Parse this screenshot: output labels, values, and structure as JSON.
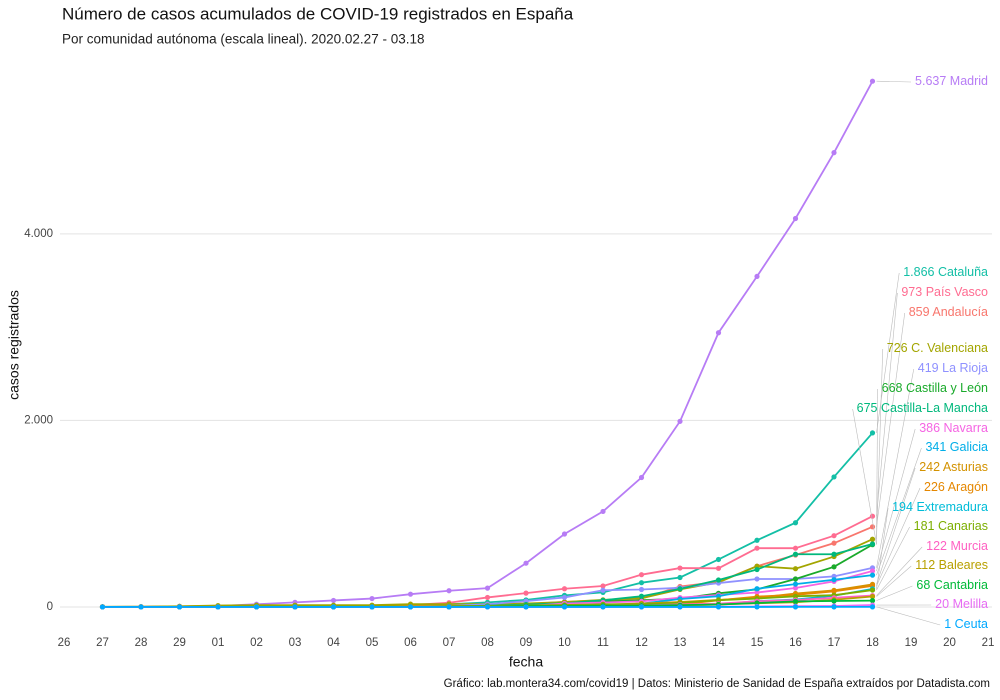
{
  "chart_data": {
    "type": "line",
    "title": "Número de casos acumulados de COVID-19 registrados en España",
    "subtitle": "Por comunidad autónoma (escala lineal). 2020.02.27 - 03.18",
    "x_label": "fecha",
    "y_label": "casos registrados",
    "caption": "Gráfico: lab.montera34.com/covid19 | Datos: Ministerio de Sanidad de España extraídos por Datadista.com",
    "categories": [
      "26",
      "27",
      "28",
      "29",
      "01",
      "02",
      "03",
      "04",
      "05",
      "06",
      "07",
      "08",
      "09",
      "10",
      "11",
      "12",
      "13",
      "14",
      "15",
      "16",
      "17",
      "18",
      "19",
      "20",
      "21"
    ],
    "ylim": [
      -200,
      5800
    ],
    "yticks": [
      0,
      {
        "value": 2000,
        "label": "2.000"
      },
      {
        "value": 4000,
        "label": "4.000"
      }
    ],
    "grid": true,
    "series": [
      {
        "name": "Madrid",
        "color": "#b77cf5",
        "values": [
          null,
          1,
          2,
          6,
          10,
          29,
          49,
          70,
          90,
          137,
          174,
          202,
          469,
          782,
          1024,
          1388,
          1990,
          2940,
          3544,
          4165,
          4871,
          5637,
          null,
          null,
          null
        ],
        "value_labels": [
          null,
          null,
          null,
          null,
          null,
          null,
          null,
          null,
          null,
          null,
          null,
          null,
          null,
          null,
          null,
          null,
          null,
          null,
          null,
          null,
          null,
          "5.637",
          null,
          null,
          null
        ]
      },
      {
        "name": "Cataluña",
        "color": "#13bfa6",
        "values": [
          null,
          1,
          1,
          2,
          6,
          15,
          15,
          15,
          15,
          21,
          28,
          49,
          75,
          124,
          156,
          260,
          316,
          509,
          715,
          903,
          1394,
          1866,
          null,
          null,
          null
        ],
        "value_labels": [
          null,
          null,
          null,
          null,
          null,
          null,
          null,
          null,
          null,
          null,
          null,
          null,
          null,
          null,
          null,
          null,
          null,
          null,
          null,
          null,
          null,
          "1.866",
          null,
          null,
          null
        ]
      },
      {
        "name": "País Vasco",
        "color": "#ff6c91",
        "values": [
          null,
          0,
          0,
          1,
          2,
          3,
          7,
          13,
          17,
          20,
          45,
          102,
          148,
          195,
          225,
          346,
          417,
          414,
          630,
          630,
          764,
          973,
          null,
          null,
          null
        ],
        "value_labels": [
          null,
          null,
          null,
          null,
          null,
          null,
          null,
          null,
          null,
          null,
          null,
          null,
          null,
          null,
          null,
          null,
          null,
          null,
          null,
          null,
          null,
          "973",
          null,
          null,
          null
        ]
      },
      {
        "name": "Andalucía",
        "color": "#f8766d",
        "values": [
          null,
          1,
          1,
          6,
          8,
          12,
          13,
          13,
          13,
          13,
          13,
          18,
          28,
          54,
          71,
          90,
          219,
          269,
          437,
          557,
          684,
          859,
          null,
          null,
          null
        ],
        "value_labels": [
          null,
          null,
          null,
          null,
          null,
          null,
          null,
          null,
          null,
          null,
          null,
          null,
          null,
          null,
          null,
          null,
          null,
          null,
          null,
          null,
          null,
          "859",
          null,
          null,
          null
        ]
      },
      {
        "name": "C. Valenciana",
        "color": "#a3a500",
        "values": [
          null,
          2,
          3,
          7,
          15,
          19,
          19,
          19,
          19,
          30,
          30,
          30,
          37,
          53,
          76,
          94,
          188,
          264,
          437,
          410,
          540,
          726,
          null,
          null,
          null
        ],
        "value_labels": [
          null,
          null,
          null,
          null,
          null,
          null,
          null,
          null,
          null,
          null,
          null,
          null,
          null,
          null,
          null,
          null,
          null,
          null,
          null,
          null,
          null,
          "726",
          null,
          null,
          null
        ]
      },
      {
        "name": "La Rioja",
        "color": "#8f91ff",
        "values": [
          null,
          0,
          0,
          0,
          0,
          0,
          0,
          0,
          0,
          3,
          11,
          29,
          62,
          102,
          179,
          187,
          205,
          256,
          300,
          300,
          328,
          419,
          null,
          null,
          null
        ],
        "value_labels": [
          null,
          null,
          null,
          null,
          null,
          null,
          null,
          null,
          null,
          null,
          null,
          null,
          null,
          null,
          null,
          null,
          null,
          null,
          null,
          null,
          null,
          "419",
          null,
          null,
          null
        ]
      },
      {
        "name": "Castilla y León",
        "color": "#1aaa2b",
        "values": [
          null,
          0,
          0,
          0,
          0,
          2,
          3,
          3,
          3,
          3,
          8,
          11,
          20,
          36,
          58,
          71,
          89,
          146,
          188,
          300,
          430,
          668,
          null,
          null,
          null
        ],
        "value_labels": [
          null,
          null,
          null,
          null,
          null,
          null,
          null,
          null,
          null,
          null,
          null,
          null,
          null,
          null,
          null,
          null,
          null,
          null,
          null,
          null,
          null,
          "668",
          null,
          null,
          null
        ]
      },
      {
        "name": "Castilla-La Mancha",
        "color": "#00b87c",
        "values": [
          null,
          0,
          0,
          0,
          0,
          1,
          3,
          3,
          3,
          3,
          7,
          12,
          26,
          39,
          71,
          115,
          194,
          289,
          401,
          565,
          565,
          675,
          null,
          null,
          null
        ],
        "value_labels": [
          null,
          null,
          null,
          null,
          null,
          null,
          null,
          null,
          null,
          null,
          null,
          null,
          null,
          null,
          null,
          null,
          null,
          null,
          null,
          null,
          null,
          "675",
          null,
          null,
          null
        ]
      },
      {
        "name": "Navarra",
        "color": "#f564e3",
        "values": [
          null,
          0,
          0,
          0,
          0,
          1,
          1,
          1,
          1,
          1,
          2,
          3,
          8,
          37,
          48,
          60,
          100,
          128,
          155,
          203,
          274,
          386,
          null,
          null,
          null
        ],
        "value_labels": [
          null,
          null,
          null,
          null,
          null,
          null,
          null,
          null,
          null,
          null,
          null,
          null,
          null,
          null,
          null,
          null,
          null,
          null,
          null,
          null,
          null,
          "386",
          null,
          null,
          null
        ]
      },
      {
        "name": "Galicia",
        "color": "#00aee8",
        "values": [
          null,
          0,
          0,
          0,
          0,
          0,
          0,
          0,
          0,
          1,
          1,
          3,
          5,
          6,
          18,
          35,
          85,
          115,
          195,
          245,
          292,
          341,
          null,
          null,
          null
        ],
        "value_labels": [
          null,
          null,
          null,
          null,
          null,
          null,
          null,
          null,
          null,
          null,
          null,
          null,
          null,
          null,
          null,
          null,
          null,
          null,
          null,
          null,
          null,
          "341",
          null,
          null,
          null
        ]
      },
      {
        "name": "Asturias",
        "color": "#d39200",
        "values": [
          null,
          0,
          0,
          1,
          1,
          1,
          1,
          1,
          1,
          3,
          4,
          7,
          9,
          14,
          25,
          37,
          53,
          76,
          97,
          144,
          178,
          242,
          null,
          null,
          null
        ],
        "value_labels": [
          null,
          null,
          null,
          null,
          null,
          null,
          null,
          null,
          null,
          null,
          null,
          null,
          null,
          null,
          null,
          null,
          null,
          null,
          null,
          null,
          null,
          "242",
          null,
          null,
          null
        ]
      },
      {
        "name": "Aragón",
        "color": "#e58700",
        "values": [
          null,
          0,
          0,
          0,
          0,
          0,
          1,
          1,
          1,
          1,
          1,
          3,
          6,
          13,
          16,
          28,
          28,
          71,
          111,
          130,
          167,
          226,
          null,
          null,
          null
        ],
        "value_labels": [
          null,
          null,
          null,
          null,
          null,
          null,
          null,
          null,
          null,
          null,
          null,
          null,
          null,
          null,
          null,
          null,
          null,
          null,
          null,
          null,
          null,
          "226",
          null,
          null,
          null
        ]
      },
      {
        "name": "Extremadura",
        "color": "#00bcd8",
        "values": [
          null,
          0,
          0,
          0,
          0,
          0,
          0,
          0,
          0,
          1,
          1,
          5,
          6,
          7,
          8,
          11,
          19,
          26,
          63,
          80,
          120,
          194,
          null,
          null,
          null
        ],
        "value_labels": [
          null,
          null,
          null,
          null,
          null,
          null,
          null,
          null,
          null,
          null,
          null,
          null,
          null,
          null,
          null,
          null,
          null,
          null,
          null,
          null,
          null,
          "194",
          null,
          null,
          null
        ]
      },
      {
        "name": "Canarias",
        "color": "#7cae00",
        "values": [
          null,
          1,
          1,
          1,
          1,
          6,
          6,
          6,
          7,
          7,
          8,
          10,
          16,
          21,
          28,
          28,
          45,
          72,
          90,
          114,
          126,
          181,
          null,
          null,
          null
        ],
        "value_labels": [
          null,
          null,
          null,
          null,
          null,
          null,
          null,
          null,
          null,
          null,
          null,
          null,
          null,
          null,
          null,
          null,
          null,
          null,
          null,
          null,
          null,
          "181",
          null,
          null,
          null
        ]
      },
      {
        "name": "Murcia",
        "color": "#ff61c3",
        "values": [
          null,
          0,
          0,
          0,
          0,
          0,
          0,
          0,
          0,
          0,
          2,
          3,
          5,
          8,
          11,
          17,
          27,
          36,
          61,
          74,
          98,
          122,
          null,
          null,
          null
        ],
        "value_labels": [
          null,
          null,
          null,
          null,
          null,
          null,
          null,
          null,
          null,
          null,
          null,
          null,
          null,
          null,
          null,
          null,
          null,
          null,
          null,
          null,
          null,
          "122",
          null,
          null,
          null
        ]
      },
      {
        "name": "Baleares",
        "color": "#b8a000",
        "values": [
          null,
          0,
          0,
          1,
          1,
          1,
          1,
          1,
          2,
          5,
          6,
          8,
          11,
          13,
          13,
          15,
          15,
          26,
          40,
          50,
          77,
          112,
          null,
          null,
          null
        ],
        "value_labels": [
          null,
          null,
          null,
          null,
          null,
          null,
          null,
          null,
          null,
          null,
          null,
          null,
          null,
          null,
          null,
          null,
          null,
          null,
          null,
          null,
          null,
          "112",
          null,
          null,
          null
        ]
      },
      {
        "name": "Cantabria",
        "color": "#00ba38",
        "values": [
          null,
          0,
          0,
          0,
          0,
          0,
          0,
          0,
          1,
          1,
          1,
          5,
          10,
          10,
          12,
          15,
          19,
          26,
          42,
          60,
          64,
          68,
          null,
          null,
          null
        ],
        "value_labels": [
          null,
          null,
          null,
          null,
          null,
          null,
          null,
          null,
          null,
          null,
          null,
          null,
          null,
          null,
          null,
          null,
          null,
          null,
          null,
          null,
          null,
          "68",
          null,
          null,
          null
        ]
      },
      {
        "name": "Melilla",
        "color": "#e76bf3",
        "values": [
          null,
          0,
          0,
          0,
          0,
          0,
          0,
          0,
          0,
          0,
          0,
          0,
          0,
          0,
          0,
          1,
          1,
          3,
          5,
          8,
          10,
          20,
          null,
          null,
          null
        ],
        "value_labels": [
          null,
          null,
          null,
          null,
          null,
          null,
          null,
          null,
          null,
          null,
          null,
          null,
          null,
          null,
          null,
          null,
          null,
          null,
          null,
          null,
          null,
          "20",
          null,
          null,
          null
        ]
      },
      {
        "name": "Ceuta",
        "color": "#00a9ff",
        "values": [
          null,
          0,
          0,
          0,
          0,
          0,
          0,
          0,
          0,
          0,
          0,
          0,
          0,
          0,
          0,
          0,
          0,
          0,
          0,
          1,
          1,
          1,
          null,
          null,
          null
        ],
        "value_labels": [
          null,
          null,
          null,
          null,
          null,
          null,
          null,
          null,
          null,
          null,
          null,
          null,
          null,
          null,
          null,
          null,
          null,
          null,
          null,
          null,
          null,
          "1",
          null,
          null,
          null
        ]
      }
    ]
  }
}
